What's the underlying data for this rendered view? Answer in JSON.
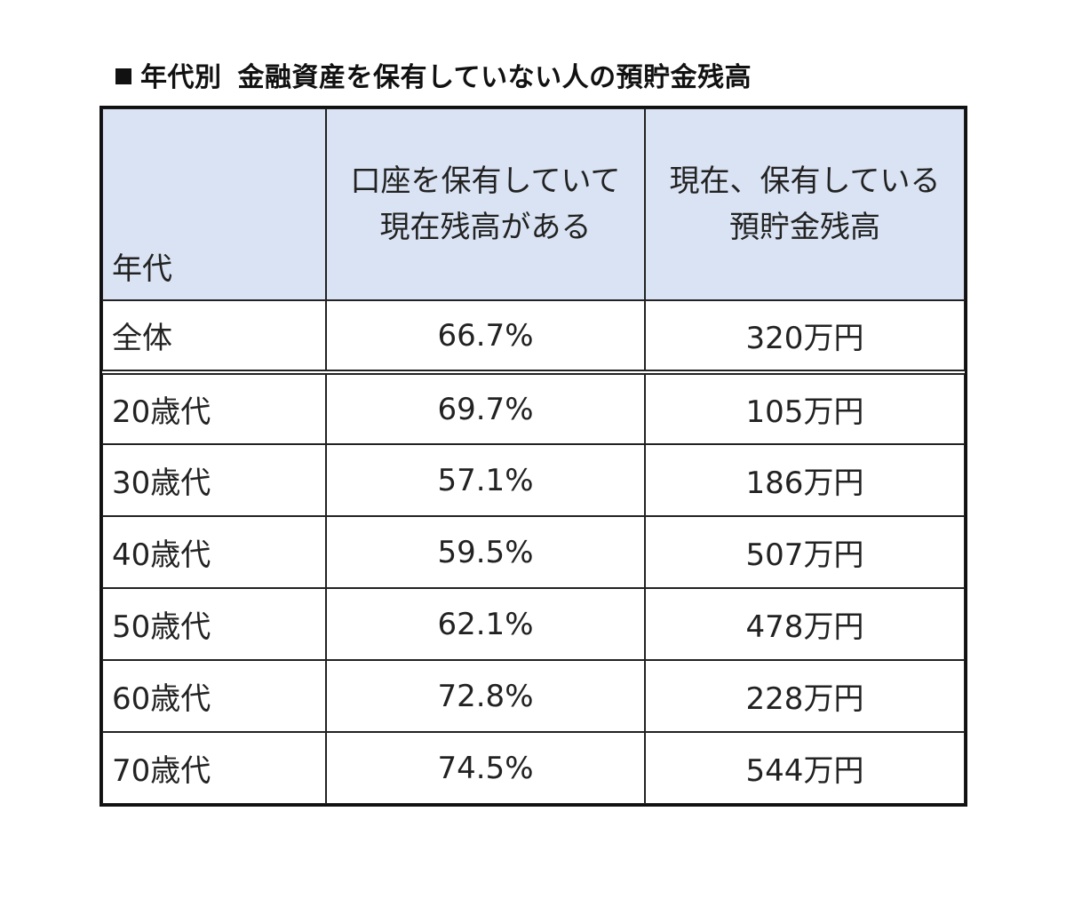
{
  "title": {
    "part1": "年代別",
    "part2": "金融資産を保有していない人の預貯金残高"
  },
  "table": {
    "headers": {
      "age": "年代",
      "percent_line1": "口座を保有していて",
      "percent_line2": "現在残高がある",
      "balance_line1": "現在、保有している",
      "balance_line2": "預貯金残高"
    },
    "rows": [
      {
        "age": "全体",
        "percent": "66.7%",
        "balance": "320万円"
      },
      {
        "age": "20歳代",
        "percent": "69.7%",
        "balance": "105万円"
      },
      {
        "age": "30歳代",
        "percent": "57.1%",
        "balance": "186万円"
      },
      {
        "age": "40歳代",
        "percent": "59.5%",
        "balance": "507万円"
      },
      {
        "age": "50歳代",
        "percent": "62.1%",
        "balance": "478万円"
      },
      {
        "age": "60歳代",
        "percent": "72.8%",
        "balance": "228万円"
      },
      {
        "age": "70歳代",
        "percent": "74.5%",
        "balance": "544万円"
      }
    ]
  },
  "colors": {
    "header_background": "#dae3f3",
    "border": "#222222",
    "text": "#222222"
  }
}
